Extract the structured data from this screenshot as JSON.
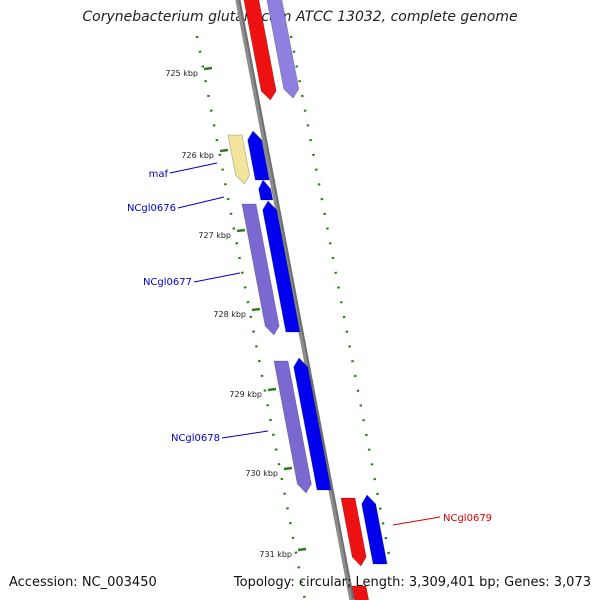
{
  "title": "Corynebacterium glutamicum ATCC 13032, complete genome",
  "accession_text": "Accession: NC_003450",
  "summary_text": "Topology: circular; Length: 3,309,401 bp; Genes: 3,073",
  "colors": {
    "backbone": "#8c8c8c",
    "tick": "#2e7d1c",
    "forward_gene": "#0000ee",
    "forward_gene_light": "#7b68d0",
    "reverse_gene": "#ee1111",
    "reverse_gene_light": "#8f7fe0",
    "pseudo_gene": "#f2e49a"
  },
  "ticks": [
    {
      "label": "725 kbp"
    },
    {
      "label": "726 kbp"
    },
    {
      "label": "727 kbp"
    },
    {
      "label": "728 kbp"
    },
    {
      "label": "729 kbp"
    },
    {
      "label": "730 kbp"
    },
    {
      "label": "731 kbp"
    }
  ],
  "gene_labels": [
    {
      "name": "maf",
      "color": "#0000cc"
    },
    {
      "name": "NCgl0676",
      "color": "#0000cc"
    },
    {
      "name": "NCgl0677",
      "color": "#0000cc"
    },
    {
      "name": "NCgl0678",
      "color": "#0000cc"
    },
    {
      "name": "NCgl0679",
      "color": "#dd0000"
    }
  ]
}
